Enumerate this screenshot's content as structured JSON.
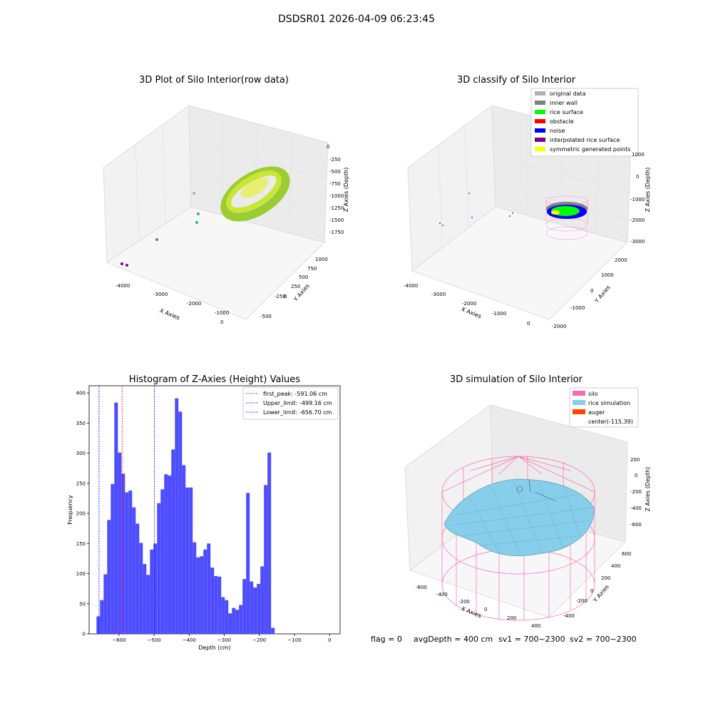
{
  "suptitle": "DSDSR01 2026-04-09 06:23:45",
  "footer": {
    "flag": "flag = 0",
    "avg_depth": "avgDepth = 400 cm",
    "sv1": "sv1 = 700~2300",
    "sv2": "sv2 = 700~2300"
  },
  "colors": {
    "hist_bar": "#4d4dff",
    "first_peak": "#ff0000",
    "limit": "#0000ff",
    "silo": "#ff69b4",
    "rice": "#87ceeb",
    "auger": "#ff4500",
    "rice_raw": "#9acd32"
  },
  "panels": {
    "raw": {
      "title": "3D Plot of Silo Interior(row data)",
      "xlabel": "X Axies",
      "ylabel": "Y Axies",
      "zlabel": "Z Axies (Depth)",
      "x_ticks": [
        "-4000",
        "-3000",
        "-2000",
        "-1000",
        "0"
      ],
      "y_ticks": [
        "-500",
        "-250",
        "0",
        "250",
        "500",
        "750",
        "1000"
      ],
      "z_ticks": [
        "0",
        "-250",
        "-500",
        "-750",
        "-1000",
        "-1250",
        "-1500",
        "-1750"
      ]
    },
    "classify": {
      "title": "3D classify of Silo Interior",
      "xlabel": "X Axies",
      "ylabel": "Y Axies",
      "zlabel": "Z Axies (Depth)",
      "x_ticks": [
        "-4000",
        "-3000",
        "-2000",
        "-1000",
        "0"
      ],
      "y_ticks": [
        "-2000",
        "-1000",
        "0",
        "1000",
        "2000"
      ],
      "z_ticks": [
        "1000",
        "0",
        "-1000",
        "-2000",
        "-3000"
      ],
      "legend": [
        {
          "label": "original data",
          "color": "#b0b0b0"
        },
        {
          "label": "inner wall",
          "color": "#808080"
        },
        {
          "label": "rice surface",
          "color": "#00ff00"
        },
        {
          "label": "obstacle",
          "color": "#ff0000"
        },
        {
          "label": "noise",
          "color": "#0000ff"
        },
        {
          "label": "interpolated rice surface",
          "color": "#800080"
        },
        {
          "label": "symmetric generated points",
          "color": "#ffff00"
        }
      ]
    },
    "simulation": {
      "title": "3D simulation of Silo Interior",
      "xlabel": "X Axies",
      "ylabel": "Y Axies",
      "zlabel": "Z Axies (Depth)",
      "x_ticks": [
        "-600",
        "-400",
        "-200",
        "0",
        "200",
        "400"
      ],
      "y_ticks": [
        "-400",
        "-200",
        "0",
        "200",
        "400",
        "600"
      ],
      "z_ticks": [
        "200",
        "0",
        "-200",
        "-400",
        "-600"
      ],
      "legend": [
        {
          "label": "silo",
          "color": "#ff69b4"
        },
        {
          "label": "rice simulation",
          "color": "#87ceeb"
        },
        {
          "label": "auger",
          "color": "#ff4500"
        },
        {
          "label": "center(-115,39)",
          "color": ""
        }
      ]
    }
  },
  "chart_data": [
    {
      "type": "bar",
      "title": "Histogram of Z-Axies (Height) Values",
      "xlabel": "Depth (cm)",
      "ylabel": "Frequency",
      "xlim": [
        -685,
        30
      ],
      "ylim": [
        0,
        412
      ],
      "x_ticks": [
        -600,
        -500,
        -400,
        -300,
        -200,
        -100,
        0
      ],
      "y_ticks": [
        0,
        50,
        100,
        150,
        200,
        250,
        300,
        350,
        400
      ],
      "bin_start": -664,
      "bin_width": 10.15,
      "values": [
        29,
        56,
        99,
        189,
        249,
        384,
        301,
        266,
        235,
        238,
        210,
        183,
        151,
        116,
        98,
        140,
        150,
        217,
        240,
        265,
        263,
        306,
        391,
        369,
        280,
        243,
        243,
        152,
        127,
        129,
        140,
        150,
        110,
        96,
        95,
        61,
        56,
        34,
        43,
        40,
        48,
        91,
        234,
        87,
        77,
        83,
        112,
        247,
        301,
        10
      ],
      "lines": [
        {
          "label": "first_peak: -591.06 cm",
          "x": -591.06,
          "color": "#ff0000"
        },
        {
          "label": "Upper_limit: -499.16 cm",
          "x": -499.16,
          "color": "#0000ff"
        },
        {
          "label": "Lower_limit: -656.70 cm",
          "x": -656.7,
          "color": "#0000ff"
        }
      ],
      "legend_position": "top-right",
      "grid": false
    }
  ]
}
